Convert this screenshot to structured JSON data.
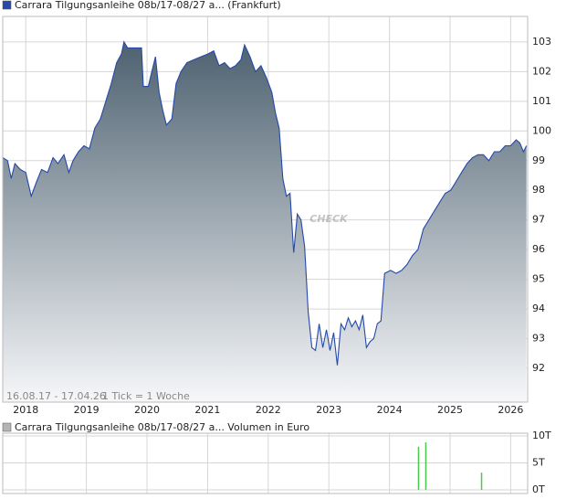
{
  "chart_data": [
    {
      "type": "area",
      "series": [
        {
          "name": "Carrara Tilgungsanleihe 08b/17-08/27 a... (Frankfurt)",
          "color": "#2449a8",
          "fill_top": "#4b5f6e",
          "fill_bottom": "#f6f7f9",
          "x": [
            2017.62,
            2017.7,
            2017.76,
            2017.82,
            2017.91,
            2018.0,
            2018.09,
            2018.18,
            2018.26,
            2018.36,
            2018.45,
            2018.53,
            2018.63,
            2018.71,
            2018.78,
            2018.87,
            2018.96,
            2019.05,
            2019.14,
            2019.23,
            2019.32,
            2019.41,
            2019.5,
            2019.58,
            2019.62,
            2019.68,
            2019.83,
            2019.91,
            2019.94,
            2020.02,
            2020.08,
            2020.14,
            2020.2,
            2020.26,
            2020.32,
            2020.41,
            2020.48,
            2020.56,
            2020.66,
            2020.77,
            2020.89,
            2021.01,
            2021.1,
            2021.19,
            2021.28,
            2021.37,
            2021.46,
            2021.55,
            2021.61,
            2021.7,
            2021.79,
            2021.88,
            2021.97,
            2022.06,
            2022.12,
            2022.18,
            2022.24,
            2022.3,
            2022.36,
            2022.42,
            2022.48,
            2022.54,
            2022.6,
            2022.66,
            2022.72,
            2022.78,
            2022.84,
            2022.9,
            2022.96,
            2023.02,
            2023.08,
            2023.14,
            2023.2,
            2023.26,
            2023.32,
            2023.38,
            2023.44,
            2023.5,
            2023.56,
            2023.62,
            2023.68,
            2023.74,
            2023.8,
            2023.86,
            2023.92,
            2024.02,
            2024.11,
            2024.2,
            2024.29,
            2024.38,
            2024.47,
            2024.56,
            2024.65,
            2024.74,
            2024.83,
            2024.92,
            2025.01,
            2025.1,
            2025.19,
            2025.28,
            2025.37,
            2025.46,
            2025.55,
            2025.64,
            2025.73,
            2025.82,
            2025.91,
            2026.0,
            2026.09,
            2026.15,
            2026.21,
            2026.26
          ],
          "values": [
            99.1,
            99.0,
            98.4,
            98.9,
            98.7,
            98.6,
            97.8,
            98.3,
            98.7,
            98.6,
            99.1,
            98.9,
            99.2,
            98.6,
            99.0,
            99.3,
            99.5,
            99.4,
            100.1,
            100.4,
            101.0,
            101.6,
            102.3,
            102.6,
            103.0,
            102.8,
            102.8,
            102.8,
            101.5,
            101.5,
            102.0,
            102.5,
            101.3,
            100.7,
            100.2,
            100.4,
            101.6,
            102.0,
            102.3,
            102.4,
            102.5,
            102.6,
            102.7,
            102.2,
            102.3,
            102.1,
            102.2,
            102.4,
            102.9,
            102.5,
            102.0,
            102.2,
            101.8,
            101.3,
            100.6,
            100.1,
            98.4,
            97.8,
            97.9,
            95.9,
            97.2,
            97.0,
            96.1,
            93.9,
            92.7,
            92.6,
            93.5,
            92.7,
            93.3,
            92.6,
            93.2,
            92.1,
            93.5,
            93.3,
            93.7,
            93.4,
            93.6,
            93.3,
            93.8,
            92.7,
            92.9,
            93.0,
            93.5,
            93.6,
            95.2,
            95.3,
            95.2,
            95.3,
            95.5,
            95.8,
            96.0,
            96.7,
            97.0,
            97.3,
            97.6,
            97.9,
            98.0,
            98.3,
            98.6,
            98.9,
            99.1,
            99.2,
            99.2,
            99.0,
            99.3,
            99.3,
            99.5,
            99.5,
            99.7,
            99.6,
            99.3,
            99.5
          ]
        }
      ],
      "xlim": [
        2017.62,
        2026.28
      ],
      "xticks": [
        2018,
        2019,
        2020,
        2021,
        2022,
        2023,
        2024,
        2025,
        2026
      ],
      "ylim": [
        90.86,
        103.86
      ],
      "yticks": [
        92,
        93,
        94,
        95,
        96,
        97,
        98,
        99,
        100,
        101,
        102,
        103
      ],
      "grid": true,
      "annotations": [
        "16.08.17 - 17.04.26",
        "1 Tick = 1 Woche"
      ],
      "watermark": "CHECK"
    },
    {
      "type": "bar",
      "series": [
        {
          "name": "Carrara Tilgungsanleihe 08b/17-08/27 a... Volumen in Euro",
          "color": "#4cc84c",
          "legend_color": "#b4b4b4",
          "x": [
            2024.48,
            2024.6,
            2025.52
          ],
          "values": [
            8,
            8.8,
            3.2
          ]
        }
      ],
      "xlim": [
        2017.62,
        2026.28
      ],
      "xticks": [
        2018,
        2019,
        2020,
        2021,
        2022,
        2023,
        2024,
        2025,
        2026
      ],
      "ylim": [
        0,
        10
      ],
      "yticks": [
        {
          "value": 0,
          "label": "0T"
        },
        {
          "value": 5,
          "label": "5T"
        },
        {
          "value": 10,
          "label": "10T"
        }
      ],
      "grid": true
    }
  ]
}
